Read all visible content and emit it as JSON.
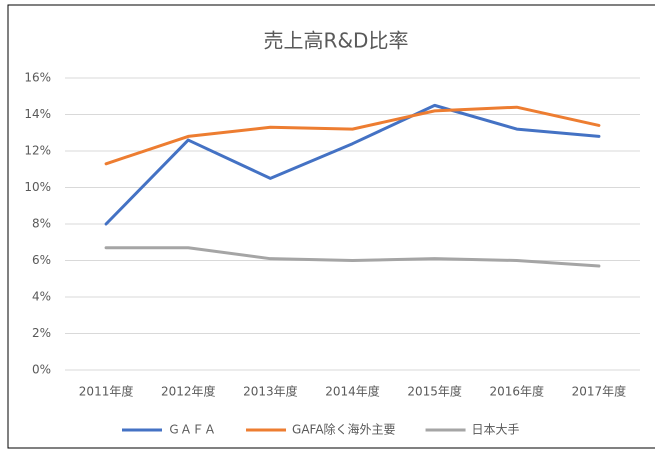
{
  "chart_data": {
    "type": "line",
    "title": "売上高R&D比率",
    "categories": [
      "2011年度",
      "2012年度",
      "2013年度",
      "2014年度",
      "2015年度",
      "2016年度",
      "2017年度"
    ],
    "series": [
      {
        "name": "ＧＡＦＡ",
        "color": "#4472c4",
        "values": [
          8.0,
          12.6,
          10.5,
          12.4,
          14.5,
          13.2,
          12.8
        ]
      },
      {
        "name": "GAFA除く海外主要",
        "color": "#ed7d31",
        "values": [
          11.3,
          12.8,
          13.3,
          13.2,
          14.2,
          14.4,
          13.4
        ]
      },
      {
        "name": "日本大手",
        "color": "#a5a5a5",
        "values": [
          6.7,
          6.7,
          6.1,
          6.0,
          6.1,
          6.0,
          5.7
        ]
      }
    ],
    "ylim": [
      0,
      16
    ],
    "yticks": [
      {
        "value": 0,
        "label": "0%"
      },
      {
        "value": 2,
        "label": "2%"
      },
      {
        "value": 4,
        "label": "4%"
      },
      {
        "value": 6,
        "label": "6%"
      },
      {
        "value": 8,
        "label": "8%"
      },
      {
        "value": 10,
        "label": "10%"
      },
      {
        "value": 12,
        "label": "12%"
      },
      {
        "value": 14,
        "label": "14%"
      },
      {
        "value": 16,
        "label": "16%"
      }
    ],
    "grid": true,
    "legend": "bottom"
  }
}
